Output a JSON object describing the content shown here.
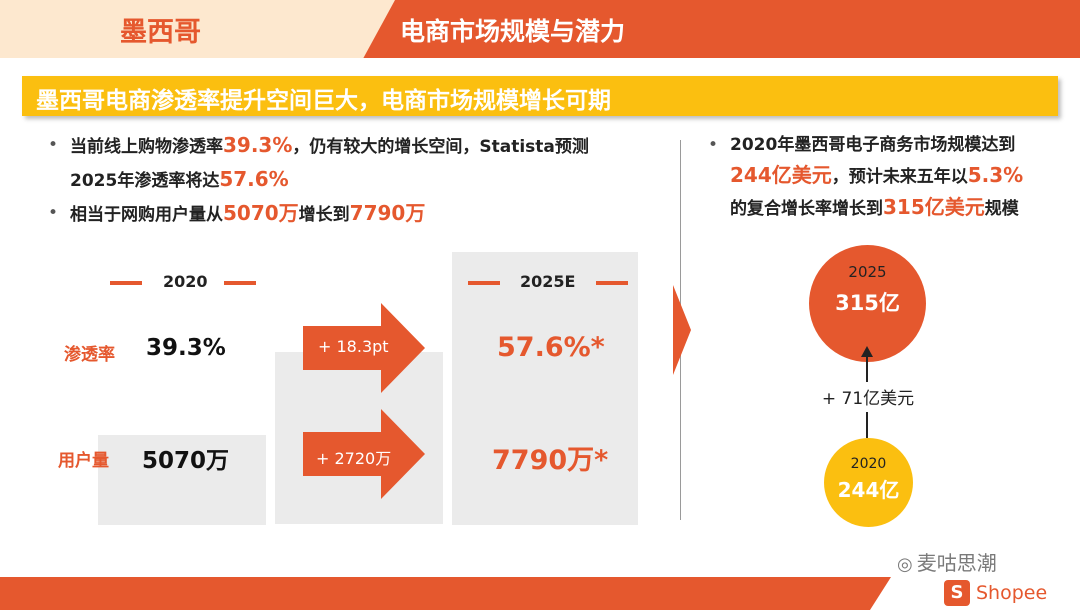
{
  "header": {
    "country": "墨西哥",
    "title": "电商市场规模与潜力"
  },
  "banner": {
    "text": "墨西哥电商渗透率提升空间巨大，电商市场规模增长可期"
  },
  "bullets_left": [
    {
      "line1_a": "当前线上购物渗透率",
      "line1_hl": "39.3%",
      "line1_b": "，仍有较大的增长空间，Statista预测",
      "line2_a": "2025年渗透率将达",
      "line2_hl": "57.6%"
    },
    {
      "a": "相当于网购用户量从",
      "hl1": "5070万",
      "b": "增长到",
      "hl2": "7790万"
    }
  ],
  "table": {
    "year_2020": "2020",
    "year_2025": "2025E",
    "row_penetration_label": "渗透率",
    "row_users_label": "用户量",
    "penetration_2020": "39.3%",
    "users_2020": "5070万",
    "penetration_delta": "+ 18.3pt",
    "users_delta": "+ 2720万",
    "penetration_2025": "57.6%*",
    "users_2025": "7790万*"
  },
  "bullet_right": {
    "line1": "2020年墨西哥电子商务市场规模达到",
    "line2_hl1": "244亿美元",
    "line2_b": "，预计未来五年以",
    "line2_hl2": "5.3%",
    "line3_a": "的复合增长率增长到",
    "line3_hl": "315亿美元",
    "line3_b": "规模"
  },
  "market": {
    "year_2025": "2025",
    "value_2025": "315亿",
    "year_2020": "2020",
    "value_2020": "244亿",
    "growth": "+ 71亿美元"
  },
  "footer": {
    "watermark": "麦咕思潮",
    "brand": "Shopee",
    "brand_glyph": "S"
  },
  "colors": {
    "accent": "#e5582e",
    "yellow": "#fbbf10",
    "peach": "#fde8cf",
    "gray_box": "#ebebeb"
  },
  "icons": {
    "watermark": "wechat-icon",
    "brand": "shopee-bag-icon"
  }
}
